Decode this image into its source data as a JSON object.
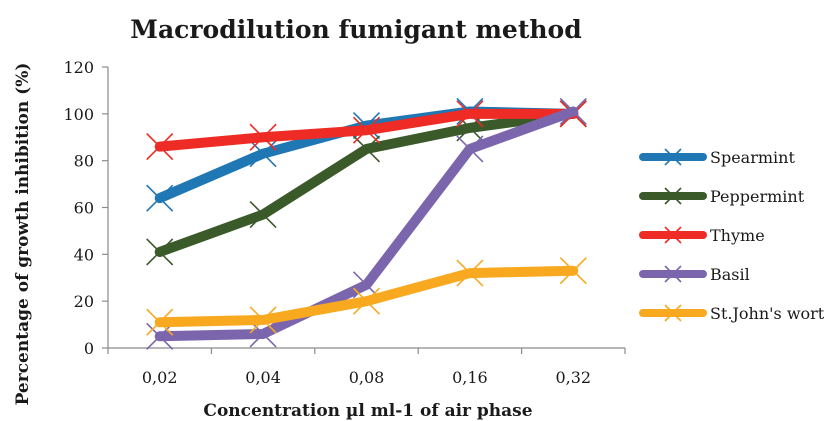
{
  "chart_data": {
    "type": "line",
    "title": "Macrodilution fumigant method",
    "xlabel": "Concentration µl ml-1 of air phase",
    "ylabel": "Percentage of growth inhibition (%)",
    "categories": [
      "0,02",
      "0,04",
      "0,08",
      "0,16",
      "0,32"
    ],
    "yticks": [
      "0",
      "20",
      "40",
      "60",
      "80",
      "100",
      "120"
    ],
    "ylim": [
      0,
      120
    ],
    "grid": false,
    "legend_position": "right",
    "series": [
      {
        "name": "Spearmint",
        "color": "#1f77b4",
        "values": [
          64,
          83,
          95,
          101,
          100
        ]
      },
      {
        "name": "Peppermint",
        "color": "#3b5a2a",
        "values": [
          41,
          57,
          85,
          94,
          100
        ]
      },
      {
        "name": "Thyme",
        "color": "#ee2b24",
        "values": [
          86,
          90,
          93,
          100,
          100
        ]
      },
      {
        "name": "Basil",
        "color": "#7b66ad",
        "values": [
          5,
          6,
          27,
          85,
          101
        ]
      },
      {
        "name": "St.John's wort",
        "color": "#f9a91f",
        "values": [
          11,
          12,
          20,
          32,
          33
        ]
      }
    ]
  }
}
